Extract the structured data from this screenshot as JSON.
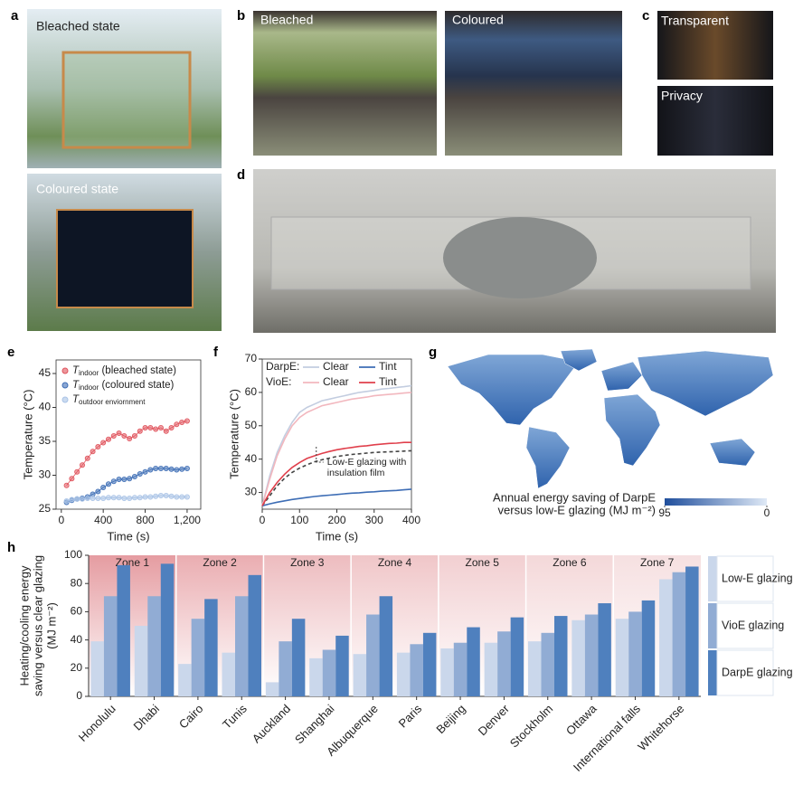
{
  "panel_labels": [
    "a",
    "b",
    "c",
    "d",
    "e",
    "f",
    "g",
    "h"
  ],
  "photos": {
    "a": [
      "Bleached state",
      "Coloured state"
    ],
    "b": [
      "Bleached",
      "Coloured"
    ],
    "c": [
      "Transparent",
      "Privacy"
    ]
  },
  "chart_data": [
    {
      "type": "line",
      "markers": true,
      "xlabel": "Time (s)",
      "ylabel": "Temperature (°C)",
      "xlim": [
        -50,
        1330
      ],
      "ylim": [
        25,
        47
      ],
      "xticks": [
        0,
        400,
        800,
        {
          "value": 1200,
          "label": "1,200"
        }
      ],
      "yticks": [
        25,
        30,
        35,
        40,
        45
      ],
      "x": [
        50,
        100,
        150,
        200,
        250,
        300,
        350,
        400,
        450,
        500,
        550,
        600,
        650,
        700,
        750,
        800,
        850,
        900,
        950,
        1000,
        1050,
        1100,
        1150,
        1200
      ],
      "series": [
        {
          "name": "T",
          "subscript": "indoor",
          "suffix": " (bleached state)",
          "color": "#e0535c",
          "values": [
            28.5,
            29.5,
            30.5,
            31.5,
            32.5,
            33.5,
            34.2,
            34.8,
            35.3,
            35.8,
            36.2,
            35.8,
            35.4,
            35.8,
            36.5,
            37.0,
            37.0,
            36.8,
            37.0,
            36.5,
            37.0,
            37.5,
            37.8,
            38.0
          ]
        },
        {
          "name": "T",
          "subscript": "indoor",
          "suffix": " (coloured state)",
          "color": "#3d6db5",
          "values": [
            26.0,
            26.3,
            26.5,
            26.6,
            26.8,
            27.2,
            27.6,
            28.2,
            28.7,
            29.1,
            29.4,
            29.4,
            29.5,
            29.8,
            30.2,
            30.5,
            30.8,
            31.0,
            31.0,
            31.0,
            30.9,
            30.8,
            30.9,
            31.0
          ]
        },
        {
          "name": "T",
          "subscript": "outdoor enviornment",
          "suffix": "",
          "color": "#a9c3e6",
          "values": [
            26.2,
            26.4,
            26.5,
            26.5,
            26.6,
            26.6,
            26.6,
            26.6,
            26.7,
            26.7,
            26.7,
            26.6,
            26.6,
            26.7,
            26.7,
            26.8,
            26.8,
            26.9,
            27.0,
            27.0,
            26.9,
            26.8,
            26.8,
            26.8
          ]
        }
      ]
    },
    {
      "type": "line",
      "markers": false,
      "xlabel": "Time (s)",
      "ylabel": "Temperature (°C)",
      "xlim": [
        0,
        400
      ],
      "ylim": [
        25,
        70
      ],
      "xticks": [
        0,
        100,
        200,
        300,
        400
      ],
      "yticks": [
        30,
        40,
        50,
        60,
        70
      ],
      "x": [
        0,
        20,
        40,
        60,
        80,
        100,
        120,
        140,
        160,
        180,
        200,
        220,
        240,
        260,
        280,
        300,
        320,
        340,
        360,
        380,
        400
      ],
      "series_groups": [
        {
          "name": "DarpE:",
          "series": [
            {
              "name": "Clear",
              "color": "#c3cde0",
              "values": [
                26,
                35,
                42,
                47,
                51,
                54,
                55.5,
                56.5,
                57.5,
                58,
                58.5,
                59,
                59.5,
                60,
                60.3,
                60.6,
                61,
                61.2,
                61.5,
                61.7,
                62
              ]
            },
            {
              "name": "Tint",
              "color": "#3d6db5",
              "values": [
                26,
                26.6,
                27.1,
                27.5,
                27.9,
                28.2,
                28.5,
                28.8,
                29,
                29.2,
                29.4,
                29.6,
                29.8,
                29.9,
                30.1,
                30.2,
                30.4,
                30.5,
                30.6,
                30.8,
                31
              ]
            }
          ]
        },
        {
          "name": "VioE:",
          "series": [
            {
              "name": "Clear",
              "color": "#f2b7be",
              "values": [
                26,
                34,
                41,
                46,
                50,
                52.5,
                54,
                55,
                56,
                56.5,
                57,
                57.5,
                58,
                58.3,
                58.6,
                59,
                59.2,
                59.4,
                59.6,
                59.8,
                60
              ]
            },
            {
              "name": "Tint",
              "color": "#e0404c",
              "values": [
                26,
                30,
                33,
                35.5,
                37.5,
                39,
                40.2,
                41,
                41.7,
                42.3,
                42.8,
                43.2,
                43.5,
                43.8,
                44,
                44.3,
                44.5,
                44.7,
                44.8,
                45,
                45
              ]
            }
          ]
        }
      ],
      "reference_series": {
        "color": "#444444",
        "dash": true,
        "values": [
          26,
          29,
          32,
          34.3,
          36,
          37.3,
          38.3,
          39.2,
          39.8,
          40.3,
          40.8,
          41.1,
          41.4,
          41.6,
          41.8,
          42,
          42.1,
          42.2,
          42.3,
          42.4,
          42.5
        ]
      },
      "annotation": [
        "Low-E glazing with",
        "insulation film"
      ]
    },
    {
      "type": "map",
      "colorbar": {
        "label": [
          "Annual energy saving of DarpE",
          "versus low-E glazing (MJ m⁻²)"
        ],
        "clim": [
          95,
          0
        ],
        "ticks": [
          95,
          0
        ],
        "colors": [
          "#1f4e9c",
          "#dfe9f6"
        ]
      }
    },
    {
      "type": "bar",
      "ylabel": [
        "Heating/cooling energy",
        "saving versus clear glazing",
        "(MJ m⁻²)"
      ],
      "ylim": [
        0,
        100
      ],
      "yticks": [
        0,
        20,
        40,
        60,
        80,
        100
      ],
      "categories": [
        "Honolulu",
        "Dhabi",
        "Cairo",
        "Tunis",
        "Auckland",
        "Shanghai",
        "Albuquerque",
        "Paris",
        "Beijing",
        "Denver",
        "Stockholm",
        "Ottawa",
        "International falls",
        "Whitehorse"
      ],
      "zones": [
        {
          "label": "Zone 1",
          "color": "#e59ca1"
        },
        {
          "label": "Zone 2",
          "color": "#eaadb1"
        },
        {
          "label": "Zone 3",
          "color": "#edbcbf"
        },
        {
          "label": "Zone 4",
          "color": "#f0c6c8"
        },
        {
          "label": "Zone 5",
          "color": "#f2cfd1"
        },
        {
          "label": "Zone 6",
          "color": "#f4d8d9"
        },
        {
          "label": "Zone 7",
          "color": "#f6e0e1"
        }
      ],
      "series": [
        {
          "name": "Low-E glazing",
          "color": "#cad7eb",
          "values": [
            39,
            50,
            23,
            31,
            10,
            27,
            30,
            31,
            34,
            38,
            39,
            54,
            55,
            83
          ]
        },
        {
          "name": "VioE glazing",
          "color": "#91acd4",
          "values": [
            71,
            71,
            55,
            71,
            39,
            33,
            58,
            37,
            38,
            46,
            45,
            58,
            60,
            88
          ]
        },
        {
          "name": "DarpE glazing",
          "color": "#4f80be",
          "values": [
            93,
            94,
            69,
            86,
            55,
            43,
            71,
            45,
            49,
            56,
            57,
            66,
            68,
            92
          ]
        }
      ]
    }
  ]
}
